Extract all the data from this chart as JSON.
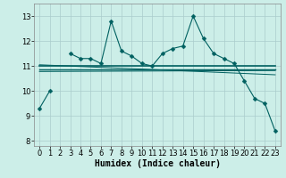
{
  "x": [
    0,
    1,
    2,
    3,
    4,
    5,
    6,
    7,
    8,
    9,
    10,
    11,
    12,
    13,
    14,
    15,
    16,
    17,
    18,
    19,
    20,
    21,
    22,
    23
  ],
  "main_line": [
    9.3,
    10.0,
    null,
    11.5,
    11.3,
    11.3,
    11.1,
    12.8,
    11.6,
    11.4,
    11.1,
    11.0,
    11.5,
    11.7,
    11.8,
    13.0,
    12.1,
    11.5,
    11.3,
    11.1,
    10.4,
    9.7,
    9.5,
    8.4
  ],
  "trend1_x": [
    0,
    23
  ],
  "trend1_y": [
    11.0,
    11.0
  ],
  "trend2_x": [
    0,
    23
  ],
  "trend2_y": [
    10.87,
    10.87
  ],
  "reg_line1_x": [
    0,
    23
  ],
  "reg_line1_y": [
    10.78,
    10.82
  ],
  "reg_line2_x": [
    0,
    23
  ],
  "reg_line2_y": [
    11.05,
    10.65
  ],
  "background_color": "#cceee8",
  "grid_color": "#aacccc",
  "line_color": "#006060",
  "xlabel": "Humidex (Indice chaleur)",
  "xlabel_fontsize": 7,
  "ylim": [
    7.8,
    13.5
  ],
  "yticks": [
    8,
    9,
    10,
    11,
    12,
    13
  ],
  "xticks": [
    0,
    1,
    2,
    3,
    4,
    5,
    6,
    7,
    8,
    9,
    10,
    11,
    12,
    13,
    14,
    15,
    16,
    17,
    18,
    19,
    20,
    21,
    22,
    23
  ],
  "tick_fontsize": 6,
  "marker": "D",
  "marker_size": 2.5
}
